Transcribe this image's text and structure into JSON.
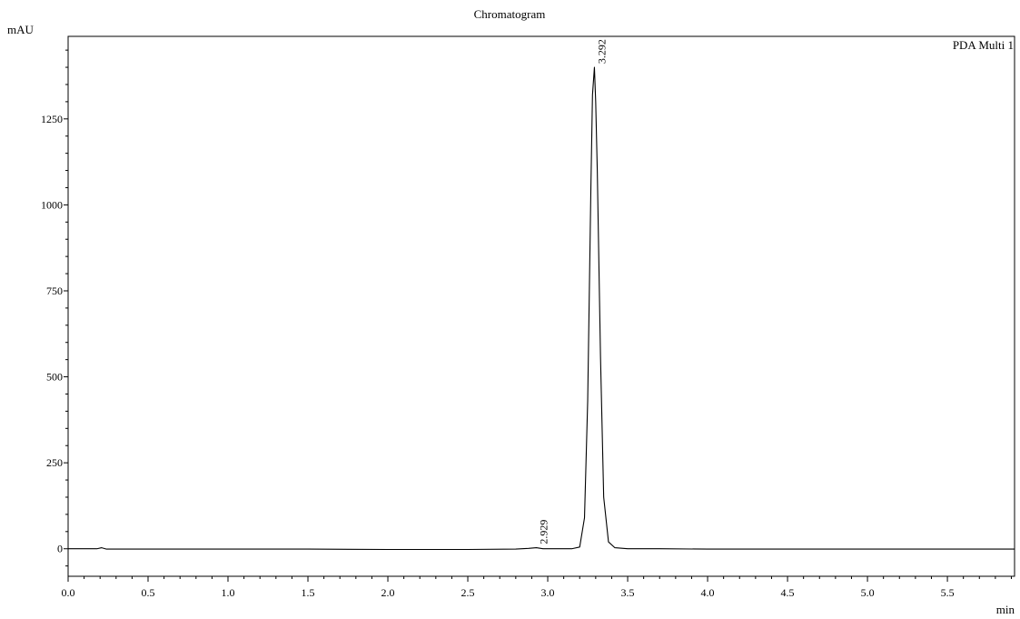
{
  "chart_data": {
    "type": "line",
    "title": "Chromatogram",
    "ylabel": "mAU",
    "xlabel": "min",
    "channel_label": "PDA Multi 1",
    "xlim": [
      0.0,
      5.92
    ],
    "ylim": [
      -80,
      1490
    ],
    "x_ticks": [
      "0.0",
      "0.5",
      "1.0",
      "1.5",
      "2.0",
      "2.5",
      "3.0",
      "3.5",
      "4.0",
      "4.5",
      "5.0",
      "5.5"
    ],
    "y_ticks": [
      "0",
      "250",
      "500",
      "750",
      "1000",
      "1250"
    ],
    "grid": false,
    "series": [
      {
        "x": [
          0.0,
          0.18,
          0.21,
          0.24,
          0.4,
          1.0,
          1.5,
          2.0,
          2.5,
          2.8,
          2.88,
          2.929,
          2.97,
          3.05,
          3.15,
          3.2,
          3.23,
          3.25,
          3.27,
          3.28,
          3.292,
          3.3,
          3.31,
          3.33,
          3.35,
          3.38,
          3.42,
          3.5,
          3.7,
          4.0,
          4.5,
          5.0,
          5.5,
          5.92
        ],
        "y": [
          0,
          0,
          3,
          -1,
          -1,
          -1,
          -1,
          -2,
          -2,
          -1,
          1,
          3,
          0,
          0,
          0,
          5,
          90,
          430,
          1050,
          1320,
          1400,
          1300,
          1100,
          560,
          150,
          20,
          3,
          0,
          0,
          -1,
          -1,
          -1,
          -1,
          -1
        ]
      }
    ],
    "annotations": [
      {
        "text": "2.929",
        "x": 2.929,
        "y": 3
      },
      {
        "text": "3.292",
        "x": 3.292,
        "y": 1400
      }
    ]
  }
}
